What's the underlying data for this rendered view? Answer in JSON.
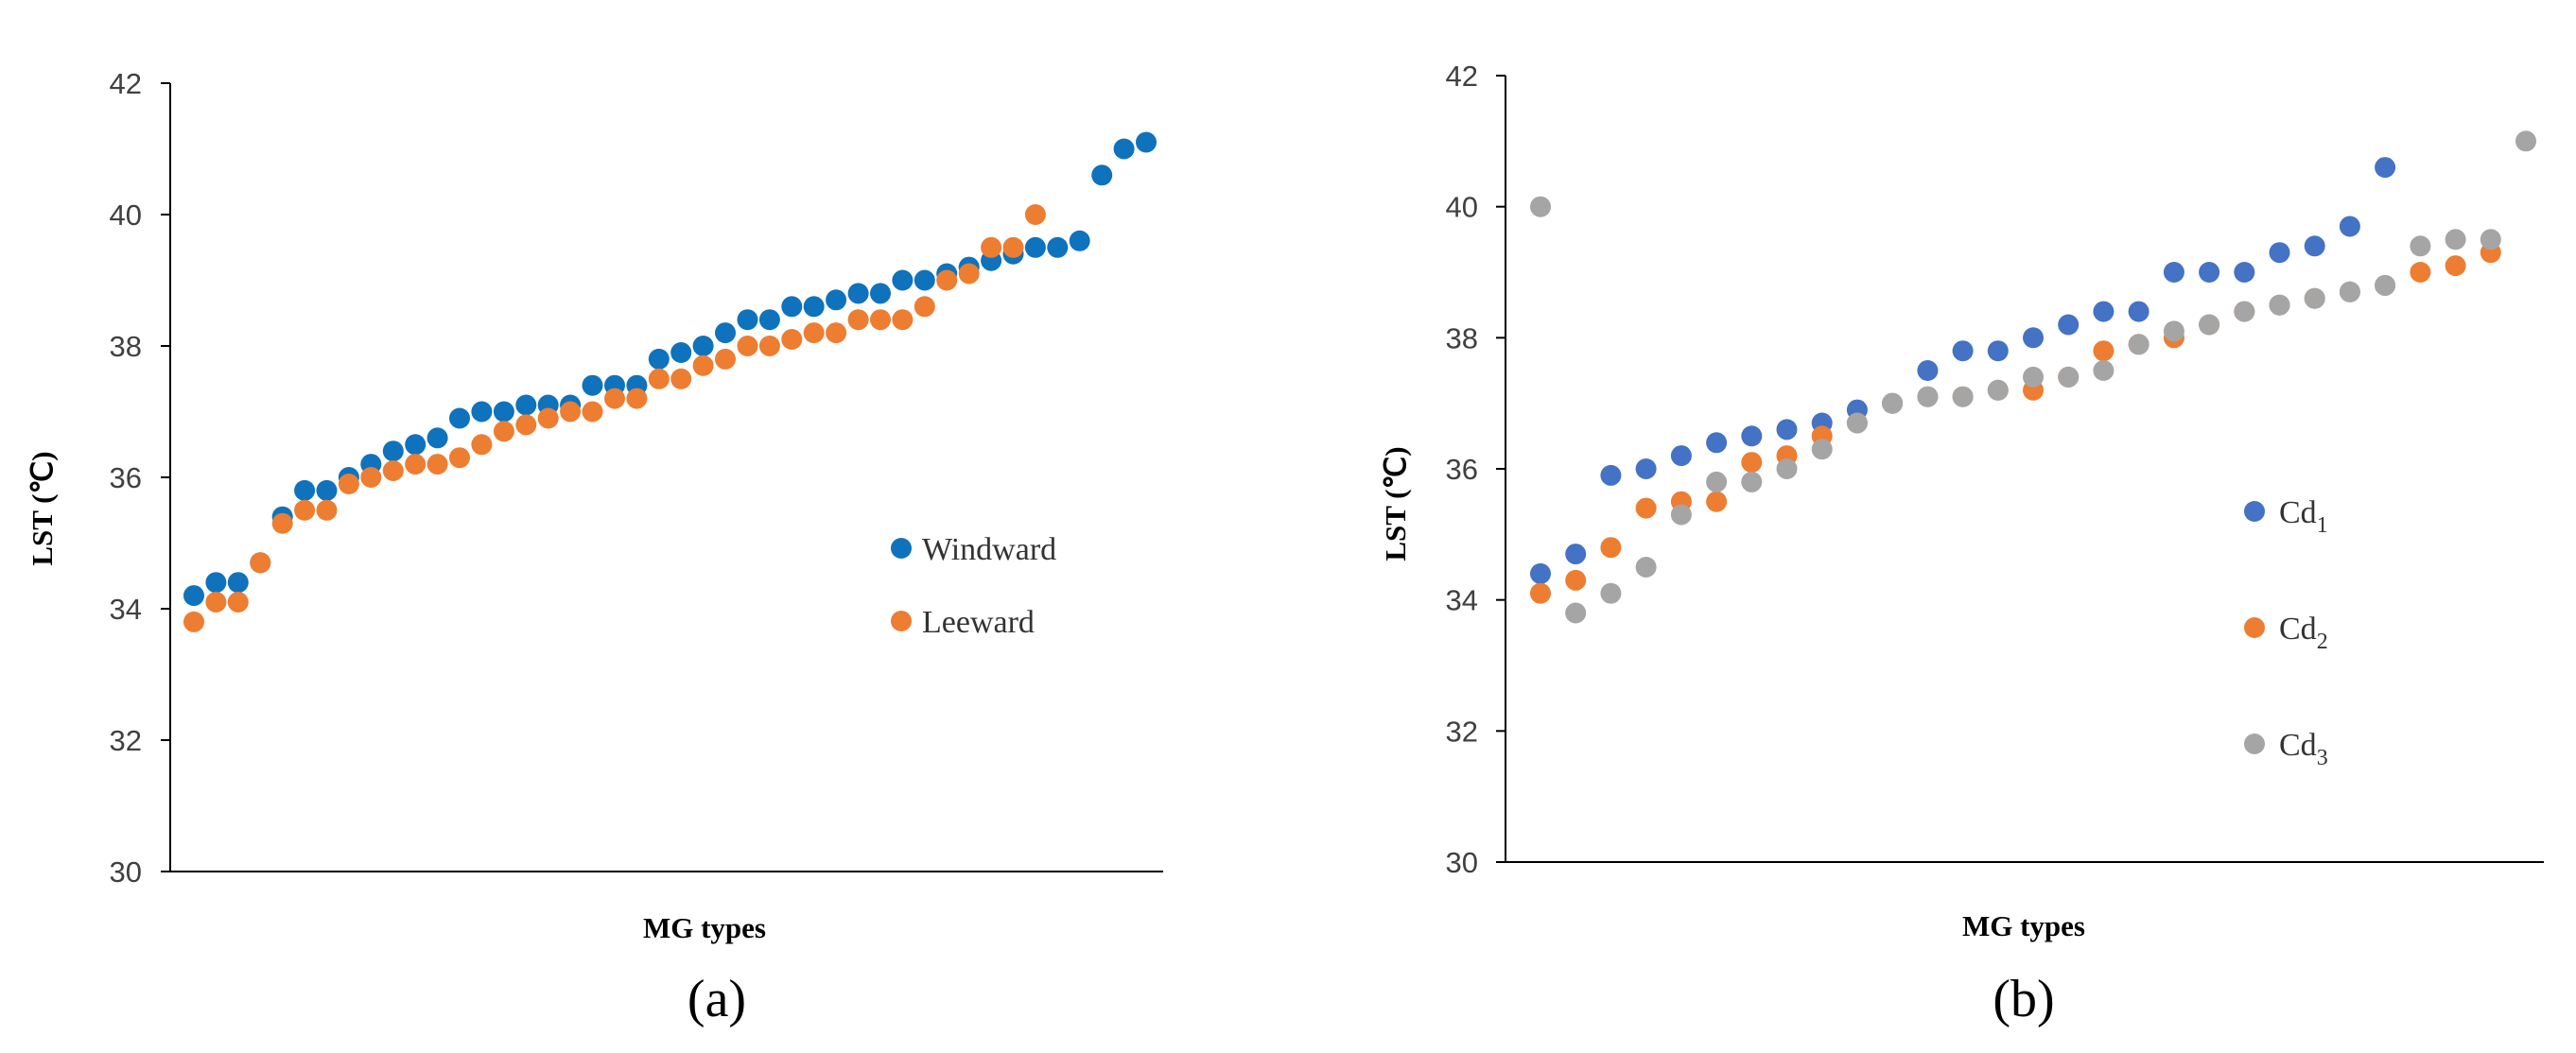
{
  "colors": {
    "blue_a": "#0F72BD",
    "orange": "#ED7D31",
    "blue_b": "#4472C4",
    "gray": "#A5A5A5",
    "axis": "#000000"
  },
  "chart_data": [
    {
      "type": "scatter",
      "panel_label": "(a)",
      "title": "",
      "xlabel": "MG types",
      "ylabel": "LST  (℃)",
      "ylim": [
        30,
        42
      ],
      "yticks": [
        30,
        32,
        34,
        36,
        38,
        40,
        42
      ],
      "xlim": [
        0,
        44.5
      ],
      "legend_position": "center-right",
      "series": [
        {
          "name": "Windward",
          "legend": {
            "main": "Windward",
            "sub": ""
          },
          "color_key": "blue_a",
          "x": [
            1,
            2,
            3,
            4,
            5,
            6,
            7,
            8,
            9,
            10,
            11,
            12,
            13,
            14,
            15,
            16,
            17,
            18,
            19,
            20,
            21,
            22,
            23,
            24,
            25,
            26,
            27,
            28,
            29,
            30,
            31,
            32,
            33,
            34,
            35,
            36,
            37,
            38,
            39,
            40,
            41,
            42,
            43,
            44
          ],
          "y": [
            34.2,
            34.4,
            34.4,
            34.7,
            35.4,
            35.8,
            35.8,
            36.0,
            36.2,
            36.4,
            36.5,
            36.6,
            36.9,
            37.0,
            37.0,
            37.1,
            37.1,
            37.1,
            37.4,
            37.4,
            37.4,
            37.8,
            37.9,
            38.0,
            38.2,
            38.4,
            38.4,
            38.6,
            38.6,
            38.7,
            38.8,
            38.8,
            39.0,
            39.0,
            39.1,
            39.2,
            39.3,
            39.4,
            39.5,
            39.5,
            39.6,
            40.6,
            41.0,
            41.1
          ]
        },
        {
          "name": "Leeward",
          "legend": {
            "main": "Leeward",
            "sub": ""
          },
          "color_key": "orange",
          "x": [
            1,
            2,
            3,
            4,
            5,
            6,
            7,
            8,
            9,
            10,
            11,
            12,
            13,
            14,
            15,
            16,
            17,
            18,
            19,
            20,
            21,
            22,
            23,
            24,
            25,
            26,
            27,
            28,
            29,
            30,
            31,
            32,
            33,
            34,
            35,
            36,
            37,
            38,
            39
          ],
          "y": [
            33.8,
            34.1,
            34.1,
            34.7,
            35.3,
            35.5,
            35.5,
            35.9,
            36.0,
            36.1,
            36.2,
            36.2,
            36.3,
            36.5,
            36.7,
            36.8,
            36.9,
            37.0,
            37.0,
            37.2,
            37.2,
            37.5,
            37.5,
            37.7,
            37.8,
            38.0,
            38.0,
            38.1,
            38.2,
            38.2,
            38.4,
            38.4,
            38.4,
            38.6,
            39.0,
            39.1,
            39.5,
            39.5,
            40.0
          ]
        }
      ]
    },
    {
      "type": "scatter",
      "panel_label": "(b)",
      "title": "",
      "xlabel": "MG types",
      "ylabel": "LST  (℃)",
      "ylim": [
        30,
        42
      ],
      "yticks": [
        30,
        32,
        34,
        36,
        38,
        40,
        42
      ],
      "xlim": [
        0,
        30
      ],
      "legend_position": "center-right",
      "series": [
        {
          "name": "Cd1",
          "legend": {
            "main": "Cd",
            "sub": "1"
          },
          "color_key": "blue_b",
          "x": [
            1,
            2,
            3,
            4,
            5,
            6,
            7,
            8,
            9,
            10,
            11,
            12,
            13,
            14,
            15,
            16,
            17,
            18,
            19,
            20,
            21,
            22,
            23,
            24,
            25
          ],
          "y": [
            34.4,
            34.7,
            35.9,
            36.0,
            36.2,
            36.4,
            36.5,
            36.6,
            36.7,
            36.9,
            37.0,
            37.5,
            37.8,
            37.8,
            38.0,
            38.2,
            38.4,
            38.4,
            39.0,
            39.0,
            39.0,
            39.3,
            39.4,
            39.7,
            40.6
          ]
        },
        {
          "name": "Cd2",
          "legend": {
            "main": "Cd",
            "sub": "2"
          },
          "color_key": "orange",
          "x": [
            1,
            2,
            3,
            4,
            5,
            6,
            7,
            8,
            9,
            10,
            11,
            12,
            13,
            14,
            15,
            16,
            17,
            18,
            19,
            20,
            21,
            22,
            23,
            24,
            25,
            26,
            27,
            28
          ],
          "y": [
            34.1,
            34.3,
            34.8,
            35.4,
            35.5,
            35.5,
            36.1,
            36.2,
            36.5,
            36.7,
            37.0,
            37.1,
            37.1,
            37.2,
            37.2,
            37.4,
            37.8,
            37.9,
            38.0,
            38.2,
            38.4,
            38.5,
            38.6,
            38.7,
            38.8,
            39.0,
            39.1,
            39.3
          ]
        },
        {
          "name": "Cd3",
          "legend": {
            "main": "Cd",
            "sub": "3"
          },
          "color_key": "gray",
          "x": [
            1,
            2,
            3,
            4,
            5,
            6,
            7,
            8,
            9,
            10,
            11,
            12,
            13,
            14,
            15,
            16,
            17,
            18,
            19,
            20,
            21,
            22,
            23,
            24,
            25,
            26,
            27,
            28,
            29
          ],
          "y": [
            40.0,
            33.8,
            34.1,
            34.5,
            35.3,
            35.8,
            35.8,
            36.0,
            36.3,
            36.7,
            37.0,
            37.1,
            37.1,
            37.2,
            37.4,
            37.4,
            37.5,
            37.9,
            38.1,
            38.2,
            38.4,
            38.5,
            38.6,
            38.7,
            38.8,
            39.4,
            39.5,
            39.5,
            41.0
          ]
        }
      ]
    }
  ]
}
